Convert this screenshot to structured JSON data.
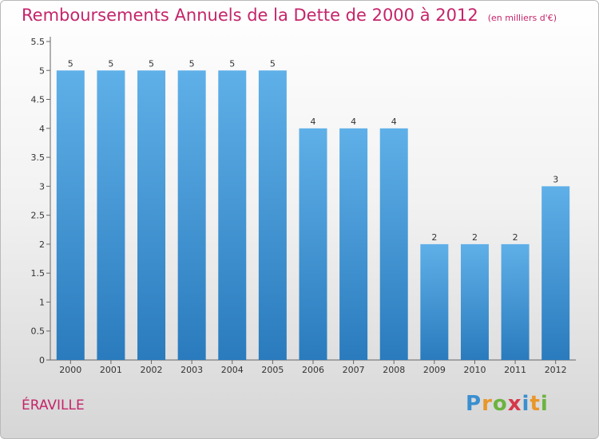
{
  "header": {
    "title": "Remboursements Annuels de la Dette de 2000 à 2012",
    "unit": "(en milliers d'€)"
  },
  "footer": {
    "commune": "ÉRAVILLE",
    "logo_letters": [
      "P",
      "r",
      "o",
      "x",
      "i",
      "t",
      "i"
    ]
  },
  "colors": {
    "title": "#c5246a",
    "bar_top": "#5fb0e8",
    "bar_bottom": "#2a7bbd"
  },
  "chart_data": {
    "type": "bar",
    "categories": [
      "2000",
      "2001",
      "2002",
      "2003",
      "2004",
      "2005",
      "2006",
      "2007",
      "2008",
      "2009",
      "2010",
      "2011",
      "2012"
    ],
    "values": [
      5,
      5,
      5,
      5,
      5,
      5,
      4,
      4,
      4,
      2,
      2,
      2,
      3
    ],
    "data_labels": [
      "5",
      "5",
      "5",
      "5",
      "5",
      "5",
      "4",
      "4",
      "4",
      "2",
      "2",
      "2",
      "3"
    ],
    "y_ticks": [
      "0",
      "0.5",
      "1",
      "1.5",
      "2",
      "2.5",
      "3",
      "3.5",
      "4",
      "4.5",
      "5",
      "5.5"
    ],
    "ylim": [
      0,
      5.5
    ],
    "grid": false,
    "legend": "none"
  }
}
